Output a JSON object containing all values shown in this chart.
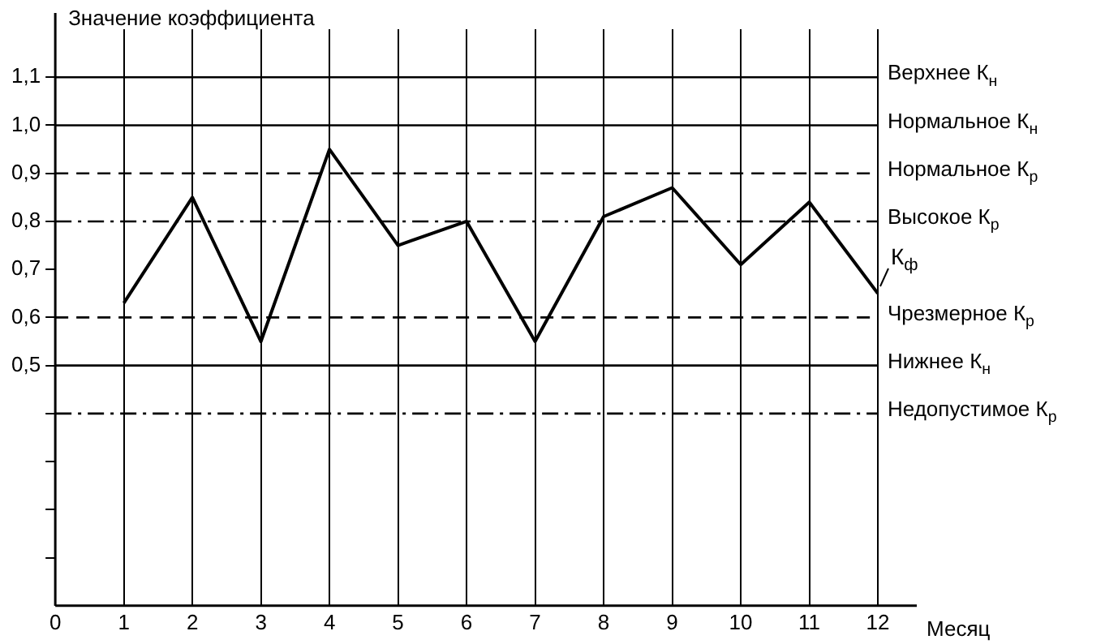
{
  "chart_data": {
    "type": "line",
    "ylabel": "Значение коэффициента",
    "xlabel": "Месяц",
    "x": [
      1,
      2,
      3,
      4,
      5,
      6,
      7,
      8,
      9,
      10,
      11,
      12
    ],
    "series": [
      {
        "name": "К$_{ф}$",
        "color": "#000000",
        "values": [
          0.63,
          0.85,
          0.55,
          0.95,
          0.75,
          0.8,
          0.55,
          0.81,
          0.87,
          0.71,
          0.84,
          0.65
        ]
      }
    ],
    "xlim": [
      0,
      12
    ],
    "xticks": [
      0,
      1,
      2,
      3,
      4,
      5,
      6,
      7,
      8,
      9,
      10,
      11,
      12
    ],
    "ylim": [
      0,
      1.2
    ],
    "yticks": [
      {
        "value": 0.1,
        "label": null
      },
      {
        "value": 0.2,
        "label": null
      },
      {
        "value": 0.3,
        "label": null
      },
      {
        "value": 0.4,
        "label": null
      },
      {
        "value": 0.5,
        "label": "0,5"
      },
      {
        "value": 0.6,
        "label": "0,6"
      },
      {
        "value": 0.7,
        "label": "0,7"
      },
      {
        "value": 0.8,
        "label": "0,8"
      },
      {
        "value": 0.9,
        "label": "0,9"
      },
      {
        "value": 1.0,
        "label": "1,0"
      },
      {
        "value": 1.1,
        "label": "1,1"
      }
    ],
    "grid": "x",
    "marker": "none",
    "line_style": "solid",
    "ref_lines": [
      {
        "axis": "y",
        "value": 1.1,
        "label": "Верхнее К$_{н}$",
        "line_style": "solid"
      },
      {
        "axis": "y",
        "value": 1.0,
        "label": "Нормальное К$_{н}$",
        "line_style": "solid"
      },
      {
        "axis": "y",
        "value": 0.9,
        "label": "Нормальное К$_{р}$",
        "line_style": "dashed"
      },
      {
        "axis": "y",
        "value": 0.8,
        "label": "Высокое К$_{р}$",
        "line_style": "dashdot"
      },
      {
        "axis": "y",
        "value": 0.6,
        "label": "Чрезмерное К$_{р}$",
        "line_style": "dashed"
      },
      {
        "axis": "y",
        "value": 0.5,
        "label": "Нижнее К$_{н}$",
        "line_style": "solid"
      },
      {
        "axis": "y",
        "value": 0.4,
        "label": "Недопустимое К$_{р}$",
        "line_style": "dashdot"
      }
    ]
  }
}
